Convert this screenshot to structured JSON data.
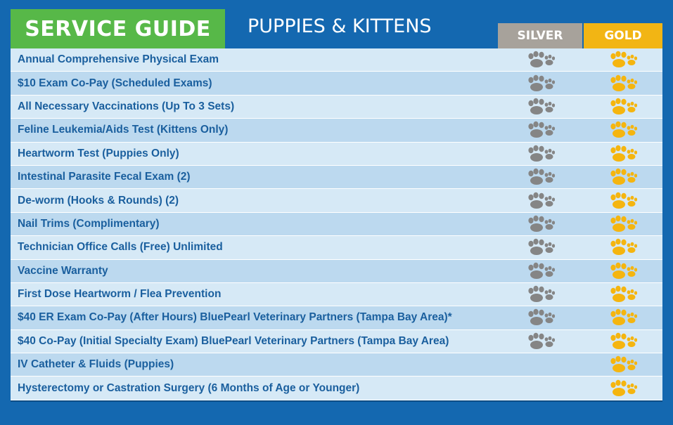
{
  "header": {
    "badge": "SERVICE GUIDE",
    "subtitle": "PUPPIES & KITTENS",
    "columns": {
      "silver": "SILVER",
      "gold": "GOLD"
    }
  },
  "colors": {
    "silver_paw": "#858585",
    "gold_paw": "#f5b50f",
    "badge": "#57b848",
    "background": "#1468b0"
  },
  "icons": {
    "included": "paw-print-icon"
  },
  "rows": [
    {
      "label": "Annual Comprehensive Physical Exam",
      "silver": true,
      "gold": true
    },
    {
      "label": "$10 Exam Co-Pay (Scheduled Exams)",
      "silver": true,
      "gold": true
    },
    {
      "label": "All Necessary Vaccinations (Up To 3 Sets)",
      "silver": true,
      "gold": true
    },
    {
      "label": "Feline Leukemia/Aids Test (Kittens Only)",
      "silver": true,
      "gold": true
    },
    {
      "label": "Heartworm Test (Puppies Only)",
      "silver": true,
      "gold": true
    },
    {
      "label": "Intestinal Parasite Fecal Exam (2)",
      "silver": true,
      "gold": true
    },
    {
      "label": "De-worm (Hooks & Rounds) (2)",
      "silver": true,
      "gold": true
    },
    {
      "label": "Nail Trims (Complimentary)",
      "silver": true,
      "gold": true
    },
    {
      "label": "Technician Office Calls (Free) Unlimited",
      "silver": true,
      "gold": true
    },
    {
      "label": "Vaccine Warranty",
      "silver": true,
      "gold": true
    },
    {
      "label": "First Dose Heartworm / Flea Prevention",
      "silver": true,
      "gold": true
    },
    {
      "label": "$40 ER Exam Co-Pay (After Hours) BluePearl Veterinary Partners (Tampa Bay Area)*",
      "silver": true,
      "gold": true
    },
    {
      "label": "$40 Co-Pay (Initial Specialty Exam) BluePearl Veterinary Partners (Tampa Bay Area)",
      "silver": true,
      "gold": true
    },
    {
      "label": "IV Catheter & Fluids (Puppies)",
      "silver": false,
      "gold": true
    },
    {
      "label": "Hysterectomy or Castration Surgery (6 Months of Age or Younger)",
      "silver": false,
      "gold": true
    }
  ]
}
